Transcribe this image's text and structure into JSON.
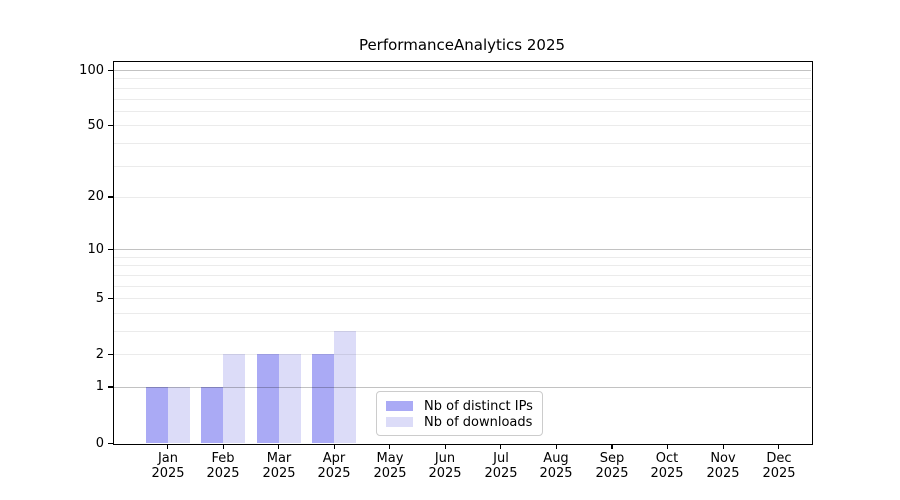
{
  "chart_data": {
    "type": "bar",
    "title": "PerformanceAnalytics 2025",
    "x_tick_months": [
      "Jan",
      "Feb",
      "Mar",
      "Apr",
      "May",
      "Jun",
      "Jul",
      "Aug",
      "Sep",
      "Oct",
      "Nov",
      "Dec"
    ],
    "x_tick_year": "2025",
    "series": [
      {
        "name": "Nb of distinct IPs",
        "color": "#aaaaf5",
        "values": [
          1,
          1,
          2,
          2,
          0,
          0,
          0,
          0,
          0,
          0,
          0,
          0
        ]
      },
      {
        "name": "Nb of downloads",
        "color": "#dcdcf8",
        "values": [
          1,
          2,
          2,
          3,
          0,
          0,
          0,
          0,
          0,
          0,
          0,
          0
        ]
      }
    ],
    "y_scale": "log1p",
    "ylim": [
      0,
      112
    ],
    "y_tick_values": [
      0,
      1,
      2,
      5,
      10,
      20,
      50,
      100
    ],
    "y_tick_labels": [
      "0",
      "1",
      "2",
      "5",
      "10",
      "20",
      "50",
      "100"
    ],
    "y_major_gridlines": [
      1,
      10,
      100
    ],
    "y_minor_gridlines": [
      2,
      3,
      4,
      5,
      6,
      7,
      8,
      9,
      20,
      30,
      40,
      50,
      60,
      70,
      80,
      90
    ],
    "legend": {
      "position": "lower center"
    },
    "colors": {
      "grid_major": "#c2c2c2",
      "grid_minor": "#ebebeb",
      "spine": "#000000",
      "background": "#ffffff"
    }
  }
}
